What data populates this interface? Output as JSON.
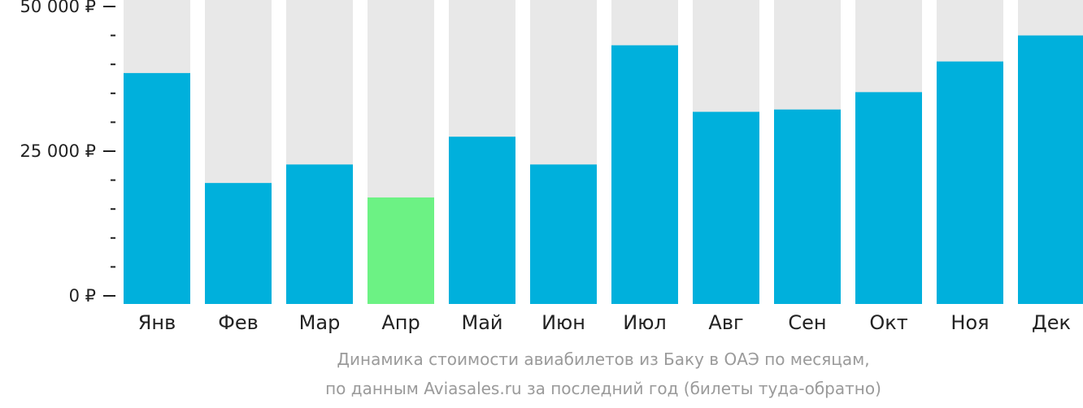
{
  "chart_data": {
    "type": "bar",
    "categories": [
      "Янв",
      "Фев",
      "Мар",
      "Апр",
      "Май",
      "Июн",
      "Июл",
      "Авг",
      "Сен",
      "Окт",
      "Ноя",
      "Дек"
    ],
    "values": [
      38500,
      19500,
      22700,
      17000,
      27500,
      22700,
      43300,
      31800,
      32200,
      35200,
      40500,
      45000
    ],
    "highlight_index": 3,
    "ylim": [
      0,
      52000
    ],
    "y_ticks": [
      {
        "value": 0,
        "label": "0 ₽"
      },
      {
        "value": 25000,
        "label": "25 000 ₽"
      },
      {
        "value": 50000,
        "label": "50 000 ₽"
      }
    ],
    "minor_tick_step": 5000,
    "title": "Динамика стоимости авиабилетов из Баку в ОАЭ по месяцам,",
    "subtitle": "по данным Aviasales.ru за последний год (билеты туда-обратно)",
    "colors": {
      "bar": "#00b0dc",
      "highlight": "#6cf284",
      "background_bar": "#e8e8e8",
      "axis": "#222222"
    }
  }
}
